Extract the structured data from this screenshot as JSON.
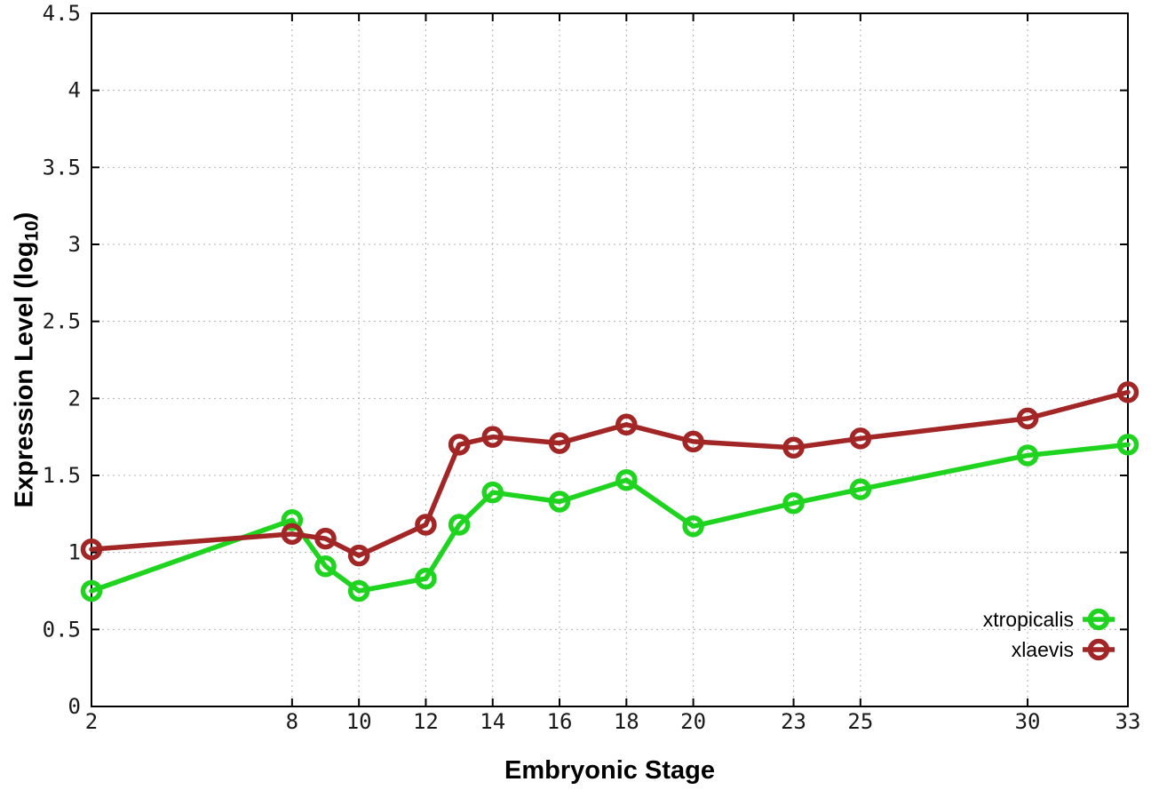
{
  "chart_data": {
    "type": "line",
    "title": "",
    "xlabel": "Embryonic Stage",
    "ylabel": "Expression Level (log10)",
    "ylabel_parts": {
      "prefix": "Expression Level (log",
      "sub": "10",
      "suffix": ")"
    },
    "xlim": [
      2,
      33
    ],
    "ylim": [
      0,
      4.5
    ],
    "x_ticks": [
      2,
      8,
      10,
      12,
      14,
      16,
      18,
      20,
      23,
      25,
      30,
      33
    ],
    "y_ticks": [
      0,
      0.5,
      1,
      1.5,
      2,
      2.5,
      3,
      3.5,
      4,
      4.5
    ],
    "grid": true,
    "grid_color": "#b0b0b0",
    "axis_color": "#000000",
    "tick_label_color": "#1a1a1a",
    "legend_position": "inside-bottom-right",
    "x": [
      2,
      8,
      9,
      10,
      12,
      13,
      14,
      16,
      18,
      20,
      23,
      25,
      30,
      33
    ],
    "series": [
      {
        "name": "xtropicalis",
        "color": "#1ed41e",
        "marker": "open-circle",
        "values": [
          0.75,
          1.21,
          0.91,
          0.75,
          0.83,
          1.18,
          1.39,
          1.33,
          1.47,
          1.17,
          1.32,
          1.41,
          1.63,
          1.7
        ]
      },
      {
        "name": "xlaevis",
        "color": "#a22626",
        "marker": "open-circle",
        "values": [
          1.02,
          1.12,
          1.09,
          0.98,
          1.18,
          1.7,
          1.75,
          1.71,
          1.83,
          1.72,
          1.68,
          1.74,
          1.87,
          2.04
        ]
      }
    ]
  }
}
